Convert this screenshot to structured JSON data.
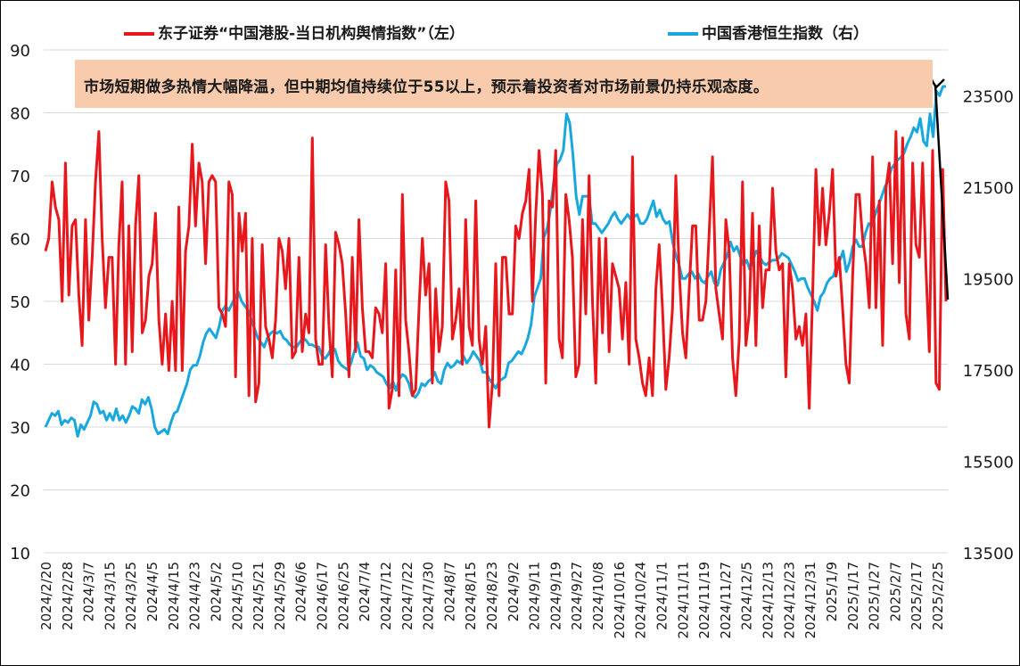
{
  "chart_data": {
    "type": "line",
    "title": "",
    "annotation": "市场短期做多热情大幅降温，但中期均值持续位于55以上，预示着投资者对市场前景仍持乐观态度。",
    "legend_placement": "top",
    "grid": "horizontal",
    "left_axis": {
      "min": 10,
      "max": 90,
      "ticks": [
        "10",
        "20",
        "30",
        "40",
        "50",
        "60",
        "70",
        "80",
        "90"
      ]
    },
    "right_axis": {
      "min": 13500,
      "max": 24500,
      "ticks": [
        "13500",
        "15500",
        "17500",
        "19500",
        "21500",
        "23500"
      ]
    },
    "x_tick_labels": [
      "2024/2/20",
      "2024/2/28",
      "2024/3/7",
      "2024/3/15",
      "2024/3/25",
      "2024/4/5",
      "2024/4/15",
      "2024/4/23",
      "2024/5/2",
      "2024/5/10",
      "2024/5/21",
      "2024/5/29",
      "2024/6/6",
      "2024/6/17",
      "2024/6/25",
      "2024/7/4",
      "2024/7/12",
      "2024/7/22",
      "2024/7/30",
      "2024/8/7",
      "2024/8/15",
      "2024/8/23",
      "2024/9/2",
      "2024/9/11",
      "2024/9/19",
      "2024/9/27",
      "2024/10/8",
      "2024/10/16",
      "2024/10/24",
      "2024/11/1",
      "2024/11/11",
      "2024/11/19",
      "2024/11/27",
      "2024/12/5",
      "2024/12/13",
      "2024/12/23",
      "2024/12/31",
      "2025/1/9",
      "2025/1/17",
      "2025/1/27",
      "2025/2/7",
      "2025/2/17",
      "2025/2/25"
    ],
    "series": [
      {
        "name": "东子证券“中国港股-当日机构舆情指数”（左）",
        "axis": "left",
        "color": "#e8171c",
        "values": [
          58,
          60,
          69,
          65,
          63,
          50,
          72,
          51,
          62,
          63,
          51,
          43,
          63,
          47,
          57,
          69,
          77,
          60,
          49,
          57,
          57,
          40,
          59,
          69,
          40,
          62,
          42,
          62,
          70,
          45,
          47,
          54,
          56,
          64,
          47,
          40,
          48,
          39,
          50,
          39,
          65,
          39,
          58,
          62,
          75,
          62,
          72,
          69,
          56,
          69,
          70,
          69,
          49,
          48,
          46,
          69,
          67,
          38,
          64,
          58,
          64,
          35,
          60,
          34,
          37,
          59,
          46,
          44,
          41,
          47,
          60,
          58,
          52,
          60,
          41,
          42,
          57,
          42,
          48,
          45,
          76,
          44,
          40,
          40,
          59,
          46,
          38,
          61,
          59,
          56,
          48,
          38,
          57,
          42,
          63,
          49,
          42,
          42,
          41,
          49,
          48,
          45,
          56,
          33,
          36,
          55,
          35,
          67,
          47,
          42,
          35,
          36,
          49,
          60,
          51,
          56,
          37,
          52,
          42,
          46,
          69,
          66,
          44,
          47,
          52,
          40,
          63,
          46,
          43,
          66,
          44,
          40,
          46,
          30,
          37,
          56,
          35,
          57,
          57,
          48,
          48,
          62,
          60,
          64,
          66,
          71,
          50,
          64,
          74,
          67,
          37,
          66,
          65,
          74,
          44,
          41,
          67,
          63,
          57,
          38,
          40,
          63,
          48,
          70,
          50,
          37,
          60,
          45,
          60,
          42,
          56,
          54,
          52,
          44,
          53,
          40,
          73,
          44,
          41,
          37,
          35,
          41,
          35,
          52,
          59,
          49,
          36,
          41,
          49,
          70,
          55,
          45,
          41,
          52,
          62,
          62,
          47,
          47,
          50,
          61,
          73,
          52,
          48,
          44,
          63,
          58,
          41,
          35,
          44,
          69,
          43,
          48,
          64,
          43,
          62,
          49,
          55,
          55,
          68,
          58,
          55,
          56,
          38,
          56,
          52,
          44,
          46,
          43,
          48,
          33,
          51,
          71,
          59,
          68,
          59,
          64,
          71,
          54,
          57,
          49,
          40,
          37,
          54,
          67,
          67,
          60,
          56,
          49,
          73,
          49,
          66,
          43,
          68,
          72,
          56,
          77,
          53,
          76,
          48,
          44,
          72,
          59,
          57,
          72,
          55,
          42,
          74,
          37,
          36,
          71,
          50
        ]
      },
      {
        "name": "中国香港恒生指数（右）",
        "axis": "right",
        "color": "#18a8de",
        "values": [
          16250,
          16400,
          16550,
          16500,
          16600,
          16300,
          16400,
          16350,
          16450,
          16400,
          16050,
          16300,
          16200,
          16350,
          16500,
          16800,
          16750,
          16550,
          16600,
          16400,
          16550,
          16400,
          16650,
          16400,
          16500,
          16350,
          16500,
          16700,
          16650,
          16550,
          16850,
          16750,
          16900,
          16650,
          16250,
          16100,
          16150,
          16200,
          16100,
          16350,
          16550,
          16600,
          16800,
          17000,
          17200,
          17500,
          17600,
          17600,
          17800,
          18100,
          18300,
          18400,
          18300,
          18200,
          18450,
          18800,
          18900,
          18800,
          18950,
          19100,
          19200,
          19000,
          18900,
          18800,
          18600,
          18400,
          18200,
          18100,
          18000,
          18200,
          18300,
          18350,
          18300,
          18350,
          18200,
          18150,
          18050,
          18000,
          18000,
          18100,
          18200,
          18150,
          18050,
          18050,
          18000,
          18000,
          17800,
          17750,
          17850,
          18000,
          17950,
          17700,
          17600,
          17550,
          17500,
          17650,
          17900,
          18100,
          17800,
          17750,
          17500,
          17600,
          17550,
          17450,
          17400,
          17350,
          17200,
          17100,
          17250,
          17050,
          17300,
          17400,
          17350,
          17200,
          16950,
          16900,
          17000,
          17200,
          17150,
          17250,
          17300,
          17450,
          17250,
          17200,
          17500,
          17650,
          17550,
          17600,
          17700,
          17650,
          17800,
          17650,
          17750,
          17900,
          17800,
          17700,
          17450,
          17450,
          17300,
          17200,
          17100,
          17250,
          17300,
          17350,
          17650,
          17700,
          17800,
          17900,
          17850,
          18000,
          18200,
          18500,
          19100,
          19300,
          19500,
          20400,
          20600,
          21000,
          21600,
          22000,
          22100,
          22300,
          23100,
          22900,
          22200,
          21300,
          20900,
          21300,
          21300,
          21300,
          20700,
          20700,
          20600,
          20500,
          20600,
          20700,
          20850,
          20950,
          20800,
          20700,
          20800,
          20900,
          20800,
          20850,
          20900,
          20700,
          20700,
          20800,
          21000,
          21200,
          20850,
          21000,
          20800,
          20700,
          20750,
          20300,
          20000,
          19800,
          19500,
          19500,
          19600,
          19650,
          19500,
          19600,
          19450,
          19400,
          19550,
          19650,
          19400,
          19350,
          19700,
          19850,
          20000,
          20300,
          20100,
          20200,
          20000,
          19800,
          19900,
          19700,
          19900,
          20100,
          20000,
          19850,
          19800,
          19850,
          19900,
          19900,
          19950,
          20050,
          20000,
          19950,
          19800,
          19650,
          19450,
          19500,
          19500,
          19300,
          19150,
          19000,
          18800,
          19100,
          19200,
          19400,
          19500,
          19550,
          19800,
          19900,
          20100,
          19650,
          19850,
          20200,
          20350,
          20200,
          20200,
          20500,
          20700,
          20650,
          20900,
          21100,
          21300,
          21500,
          21650,
          21900,
          22000,
          22100,
          22150,
          22250,
          22450,
          22600,
          22800,
          22700,
          23000,
          22500,
          22400,
          23100,
          22600,
          23600,
          23500,
          23700,
          23700
        ]
      }
    ]
  }
}
